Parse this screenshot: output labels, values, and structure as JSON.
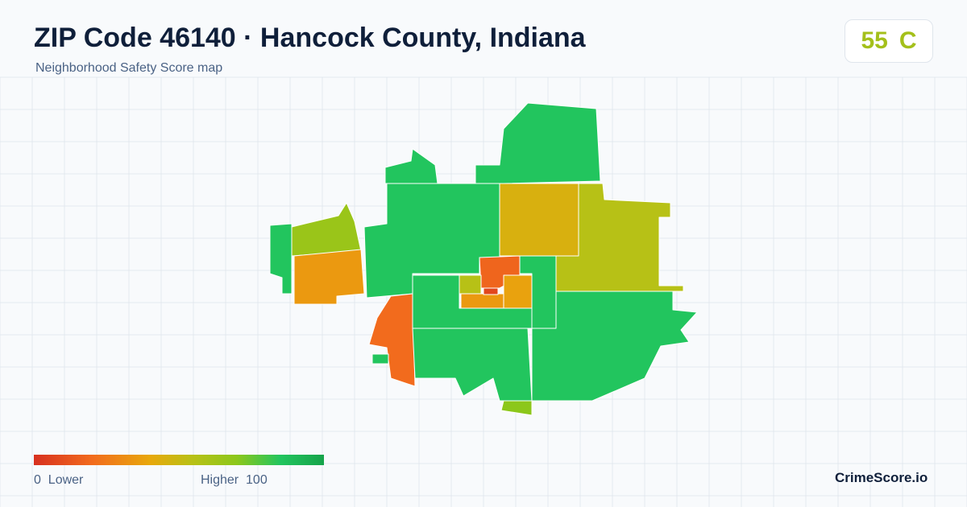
{
  "header": {
    "title": "ZIP Code 46140 · Hancock County, Indiana",
    "subtitle": "Neighborhood Safety Score map"
  },
  "score": {
    "value": "55",
    "grade": "C"
  },
  "legend": {
    "min": "0",
    "min_label": "Lower",
    "max_label": "Higher",
    "max": "100"
  },
  "region_scores": [
    85,
    85,
    85,
    45,
    55,
    65,
    35,
    85,
    20,
    18,
    55,
    35,
    38,
    8,
    85,
    85,
    85,
    85,
    70,
    85
  ],
  "brand": "CrimeScore.io"
}
